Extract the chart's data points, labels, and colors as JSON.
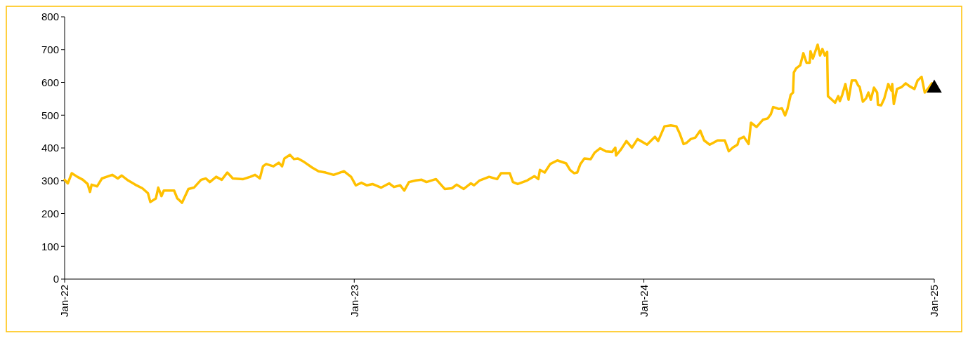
{
  "chart_data": {
    "type": "line",
    "xlim": [
      "2022-01-01",
      "2025-01-01"
    ],
    "xticks": [
      {
        "value": "2022-01-01",
        "label": "Jan-22"
      },
      {
        "value": "2023-01-01",
        "label": "Jan-23"
      },
      {
        "value": "2024-01-01",
        "label": "Jan-24"
      },
      {
        "value": "2025-01-01",
        "label": "Jan-25"
      }
    ],
    "ylim": [
      0,
      800
    ],
    "yticks": [
      0,
      100,
      200,
      300,
      400,
      500,
      600,
      700,
      800
    ],
    "grid": false,
    "line_style": "solid",
    "series": [
      {
        "color": "#ffc000",
        "marker": "none",
        "x": [
          "2022-01-01",
          "2022-01-05",
          "2022-01-10",
          "2022-01-17",
          "2022-01-24",
          "2022-01-30",
          "2022-02-02",
          "2022-02-04",
          "2022-02-11",
          "2022-02-17",
          "2022-03-02",
          "2022-03-09",
          "2022-03-14",
          "2022-03-22",
          "2022-03-31",
          "2022-04-09",
          "2022-04-16",
          "2022-04-19",
          "2022-04-26",
          "2022-04-29",
          "2022-05-03",
          "2022-05-06",
          "2022-05-19",
          "2022-05-23",
          "2022-05-29",
          "2022-06-06",
          "2022-06-13",
          "2022-06-22",
          "2022-06-28",
          "2022-07-03",
          "2022-07-11",
          "2022-07-18",
          "2022-07-25",
          "2022-08-01",
          "2022-08-14",
          "2022-08-23",
          "2022-08-29",
          "2022-09-04",
          "2022-09-08",
          "2022-09-12",
          "2022-09-21",
          "2022-09-28",
          "2022-10-02",
          "2022-10-05",
          "2022-10-12",
          "2022-10-17",
          "2022-10-22",
          "2022-10-30",
          "2022-11-09",
          "2022-11-17",
          "2022-11-26",
          "2022-12-06",
          "2022-12-19",
          "2022-12-28",
          "2023-01-03",
          "2023-01-10",
          "2023-01-17",
          "2023-01-24",
          "2023-02-04",
          "2023-02-14",
          "2023-02-20",
          "2023-02-28",
          "2023-03-05",
          "2023-03-11",
          "2023-03-20",
          "2023-03-27",
          "2023-04-02",
          "2023-04-14",
          "2023-04-25",
          "2023-05-04",
          "2023-05-10",
          "2023-05-19",
          "2023-05-28",
          "2023-06-01",
          "2023-06-08",
          "2023-06-20",
          "2023-06-30",
          "2023-07-05",
          "2023-07-11",
          "2023-07-16",
          "2023-07-20",
          "2023-07-26",
          "2023-08-07",
          "2023-08-16",
          "2023-08-21",
          "2023-08-23",
          "2023-08-29",
          "2023-09-05",
          "2023-09-14",
          "2023-09-25",
          "2023-09-30",
          "2023-10-05",
          "2023-10-09",
          "2023-10-13",
          "2023-10-18",
          "2023-10-26",
          "2023-10-31",
          "2023-11-07",
          "2023-11-14",
          "2023-11-22",
          "2023-11-26",
          "2023-11-27",
          "2023-12-03",
          "2023-12-10",
          "2023-12-17",
          "2023-12-24",
          "2024-01-05",
          "2024-01-15",
          "2024-01-19",
          "2024-01-27",
          "2024-02-04",
          "2024-02-11",
          "2024-02-15",
          "2024-02-20",
          "2024-02-24",
          "2024-02-29",
          "2024-03-06",
          "2024-03-12",
          "2024-03-17",
          "2024-03-24",
          "2024-04-03",
          "2024-04-12",
          "2024-04-17",
          "2024-04-22",
          "2024-04-28",
          "2024-04-30",
          "2024-05-06",
          "2024-05-12",
          "2024-05-15",
          "2024-05-22",
          "2024-05-30",
          "2024-06-05",
          "2024-06-09",
          "2024-06-12",
          "2024-06-19",
          "2024-06-23",
          "2024-06-27",
          "2024-06-30",
          "2024-07-04",
          "2024-07-07",
          "2024-07-08",
          "2024-07-11",
          "2024-07-16",
          "2024-07-20",
          "2024-07-24",
          "2024-07-28",
          "2024-07-29",
          "2024-08-01",
          "2024-08-07",
          "2024-08-10",
          "2024-08-13",
          "2024-08-16",
          "2024-08-19",
          "2024-08-20",
          "2024-08-25",
          "2024-08-29",
          "2024-09-02",
          "2024-09-04",
          "2024-09-07",
          "2024-09-11",
          "2024-09-15",
          "2024-09-19",
          "2024-09-24",
          "2024-09-27",
          "2024-09-29",
          "2024-10-03",
          "2024-10-07",
          "2024-10-10",
          "2024-10-13",
          "2024-10-17",
          "2024-10-21",
          "2024-10-22",
          "2024-10-26",
          "2024-10-30",
          "2024-11-04",
          "2024-11-08",
          "2024-11-09",
          "2024-11-11",
          "2024-11-15",
          "2024-11-21",
          "2024-11-26",
          "2024-12-01",
          "2024-12-07",
          "2024-12-11",
          "2024-12-16",
          "2024-12-20",
          "2024-12-25",
          "2024-12-29"
        ],
        "values": [
          303,
          292,
          323,
          312,
          303,
          290,
          266,
          288,
          283,
          307,
          318,
          307,
          316,
          301,
          288,
          277,
          262,
          235,
          246,
          279,
          253,
          270,
          270,
          246,
          233,
          275,
          279,
          303,
          307,
          296,
          312,
          303,
          325,
          307,
          305,
          312,
          318,
          307,
          344,
          351,
          344,
          355,
          344,
          368,
          379,
          366,
          368,
          357,
          340,
          329,
          325,
          318,
          329,
          312,
          286,
          294,
          286,
          290,
          279,
          292,
          281,
          286,
          270,
          296,
          301,
          303,
          296,
          305,
          275,
          277,
          288,
          275,
          292,
          286,
          301,
          312,
          305,
          323,
          323,
          323,
          296,
          290,
          301,
          314,
          305,
          333,
          325,
          351,
          362,
          353,
          333,
          323,
          325,
          351,
          368,
          366,
          386,
          399,
          390,
          388,
          401,
          377,
          395,
          421,
          401,
          427,
          410,
          434,
          421,
          466,
          469,
          466,
          445,
          412,
          416,
          427,
          432,
          453,
          423,
          410,
          423,
          423,
          390,
          401,
          410,
          427,
          434,
          412,
          477,
          464,
          486,
          490,
          503,
          525,
          519,
          521,
          499,
          519,
          562,
          569,
          630,
          643,
          652,
          689,
          660,
          660,
          695,
          673,
          715,
          682,
          702,
          682,
          693,
          558,
          547,
          538,
          558,
          543,
          562,
          595,
          547,
          606,
          606,
          591,
          586,
          541,
          551,
          569,
          547,
          584,
          569,
          532,
          530,
          551,
          595,
          575,
          595,
          534,
          580,
          586,
          597,
          588,
          580,
          606,
          617,
          569,
          584,
          597
        ]
      },
      {
        "type": "scatter",
        "color": "#000000",
        "marker": "triangle",
        "x": [
          "2025-01-01"
        ],
        "values": [
          582
        ]
      }
    ]
  }
}
